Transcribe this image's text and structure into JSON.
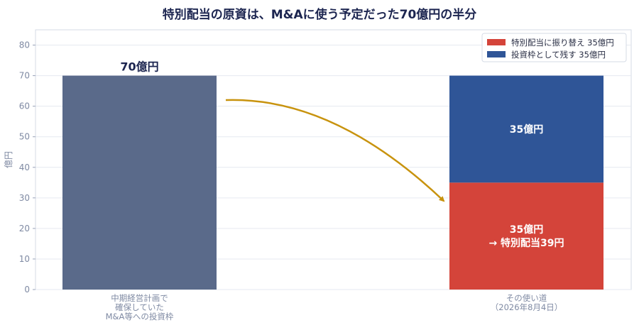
{
  "chart_data": {
    "type": "bar",
    "title": "特別配当の原資は、M&Aに使う予定だった70億円の半分",
    "ylabel": "億円",
    "ylim": [
      0,
      85
    ],
    "yticks": [
      0,
      10,
      20,
      30,
      40,
      50,
      60,
      70,
      80
    ],
    "grid": true,
    "legend_position": "top-right",
    "categories": [
      [
        "中期経営計画で",
        "確保していた",
        "M&A等への投資枠"
      ],
      [
        "その使い道",
        "（2026年8月4日）"
      ]
    ],
    "bars": [
      {
        "category_index": 0,
        "value": 70,
        "color": "#5a6a8a",
        "label": "70億円"
      }
    ],
    "stacked": [
      {
        "category_index": 1,
        "segments": [
          {
            "name": "特別配当に振り替え 35億円",
            "value": 35,
            "color": "#d4443a",
            "label_lines": [
              "35億円",
              "→ 特別配当39円"
            ]
          },
          {
            "name": "投資枠として残す 35億円",
            "value": 35,
            "color": "#2f5597",
            "label_lines": [
              "35億円"
            ]
          }
        ]
      }
    ],
    "arrow": {
      "from_value": 62,
      "to_value": 29,
      "color": "#c8930e"
    }
  }
}
